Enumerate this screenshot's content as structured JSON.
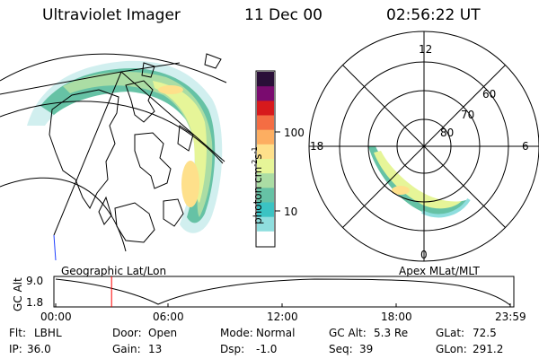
{
  "header": {
    "title": "Ultraviolet Imager",
    "date": "11 Dec 00",
    "time": "02:56:22 UT"
  },
  "left_panel": {
    "caption": "Geographic Lat/Lon"
  },
  "right_panel": {
    "caption": "Apex MLat/MLT",
    "mlt_labels": [
      "12",
      "18",
      "6",
      "0"
    ],
    "mlat_labels": [
      "60",
      "70",
      "80"
    ]
  },
  "colorbar": {
    "unit_main": "photon cm",
    "unit_exp1": "-2",
    "unit_s": "s",
    "unit_exp2": "-1",
    "tick_100": "100",
    "tick_10": "10",
    "colors": [
      "#2a0f38",
      "#7a0b6f",
      "#d7191c",
      "#f46d43",
      "#fdae61",
      "#fee08b",
      "#e6f598",
      "#abdda4",
      "#66c2a5",
      "#3bc3c3",
      "#8fdede",
      "#ffffff"
    ]
  },
  "orbit_plot": {
    "ylabel": "GC Alt",
    "ytick_high": "9.0",
    "ytick_low": "1.8",
    "xticks": [
      "00:00",
      "06:00",
      "12:00",
      "18:00",
      "23:59"
    ],
    "current_time_fraction": 0.123
  },
  "footer": {
    "flt_label": "Flt:",
    "flt_value": "LBHL",
    "door_label": "Door:",
    "door_value": "Open",
    "mode_label": "Mode:",
    "mode_value": "Normal",
    "gcalt_label": "GC Alt:",
    "gcalt_value": "5.3 Re",
    "glat_label": "GLat:",
    "glat_value": "72.5",
    "ip_label": "IP:",
    "ip_value": "36.0",
    "gain_label": "Gain:",
    "gain_value": "13",
    "dsp_label": "Dsp:",
    "dsp_value": "-1.0",
    "seq_label": "Seq:",
    "seq_value": "39",
    "glon_label": "GLon:",
    "glon_value": "291.2"
  }
}
